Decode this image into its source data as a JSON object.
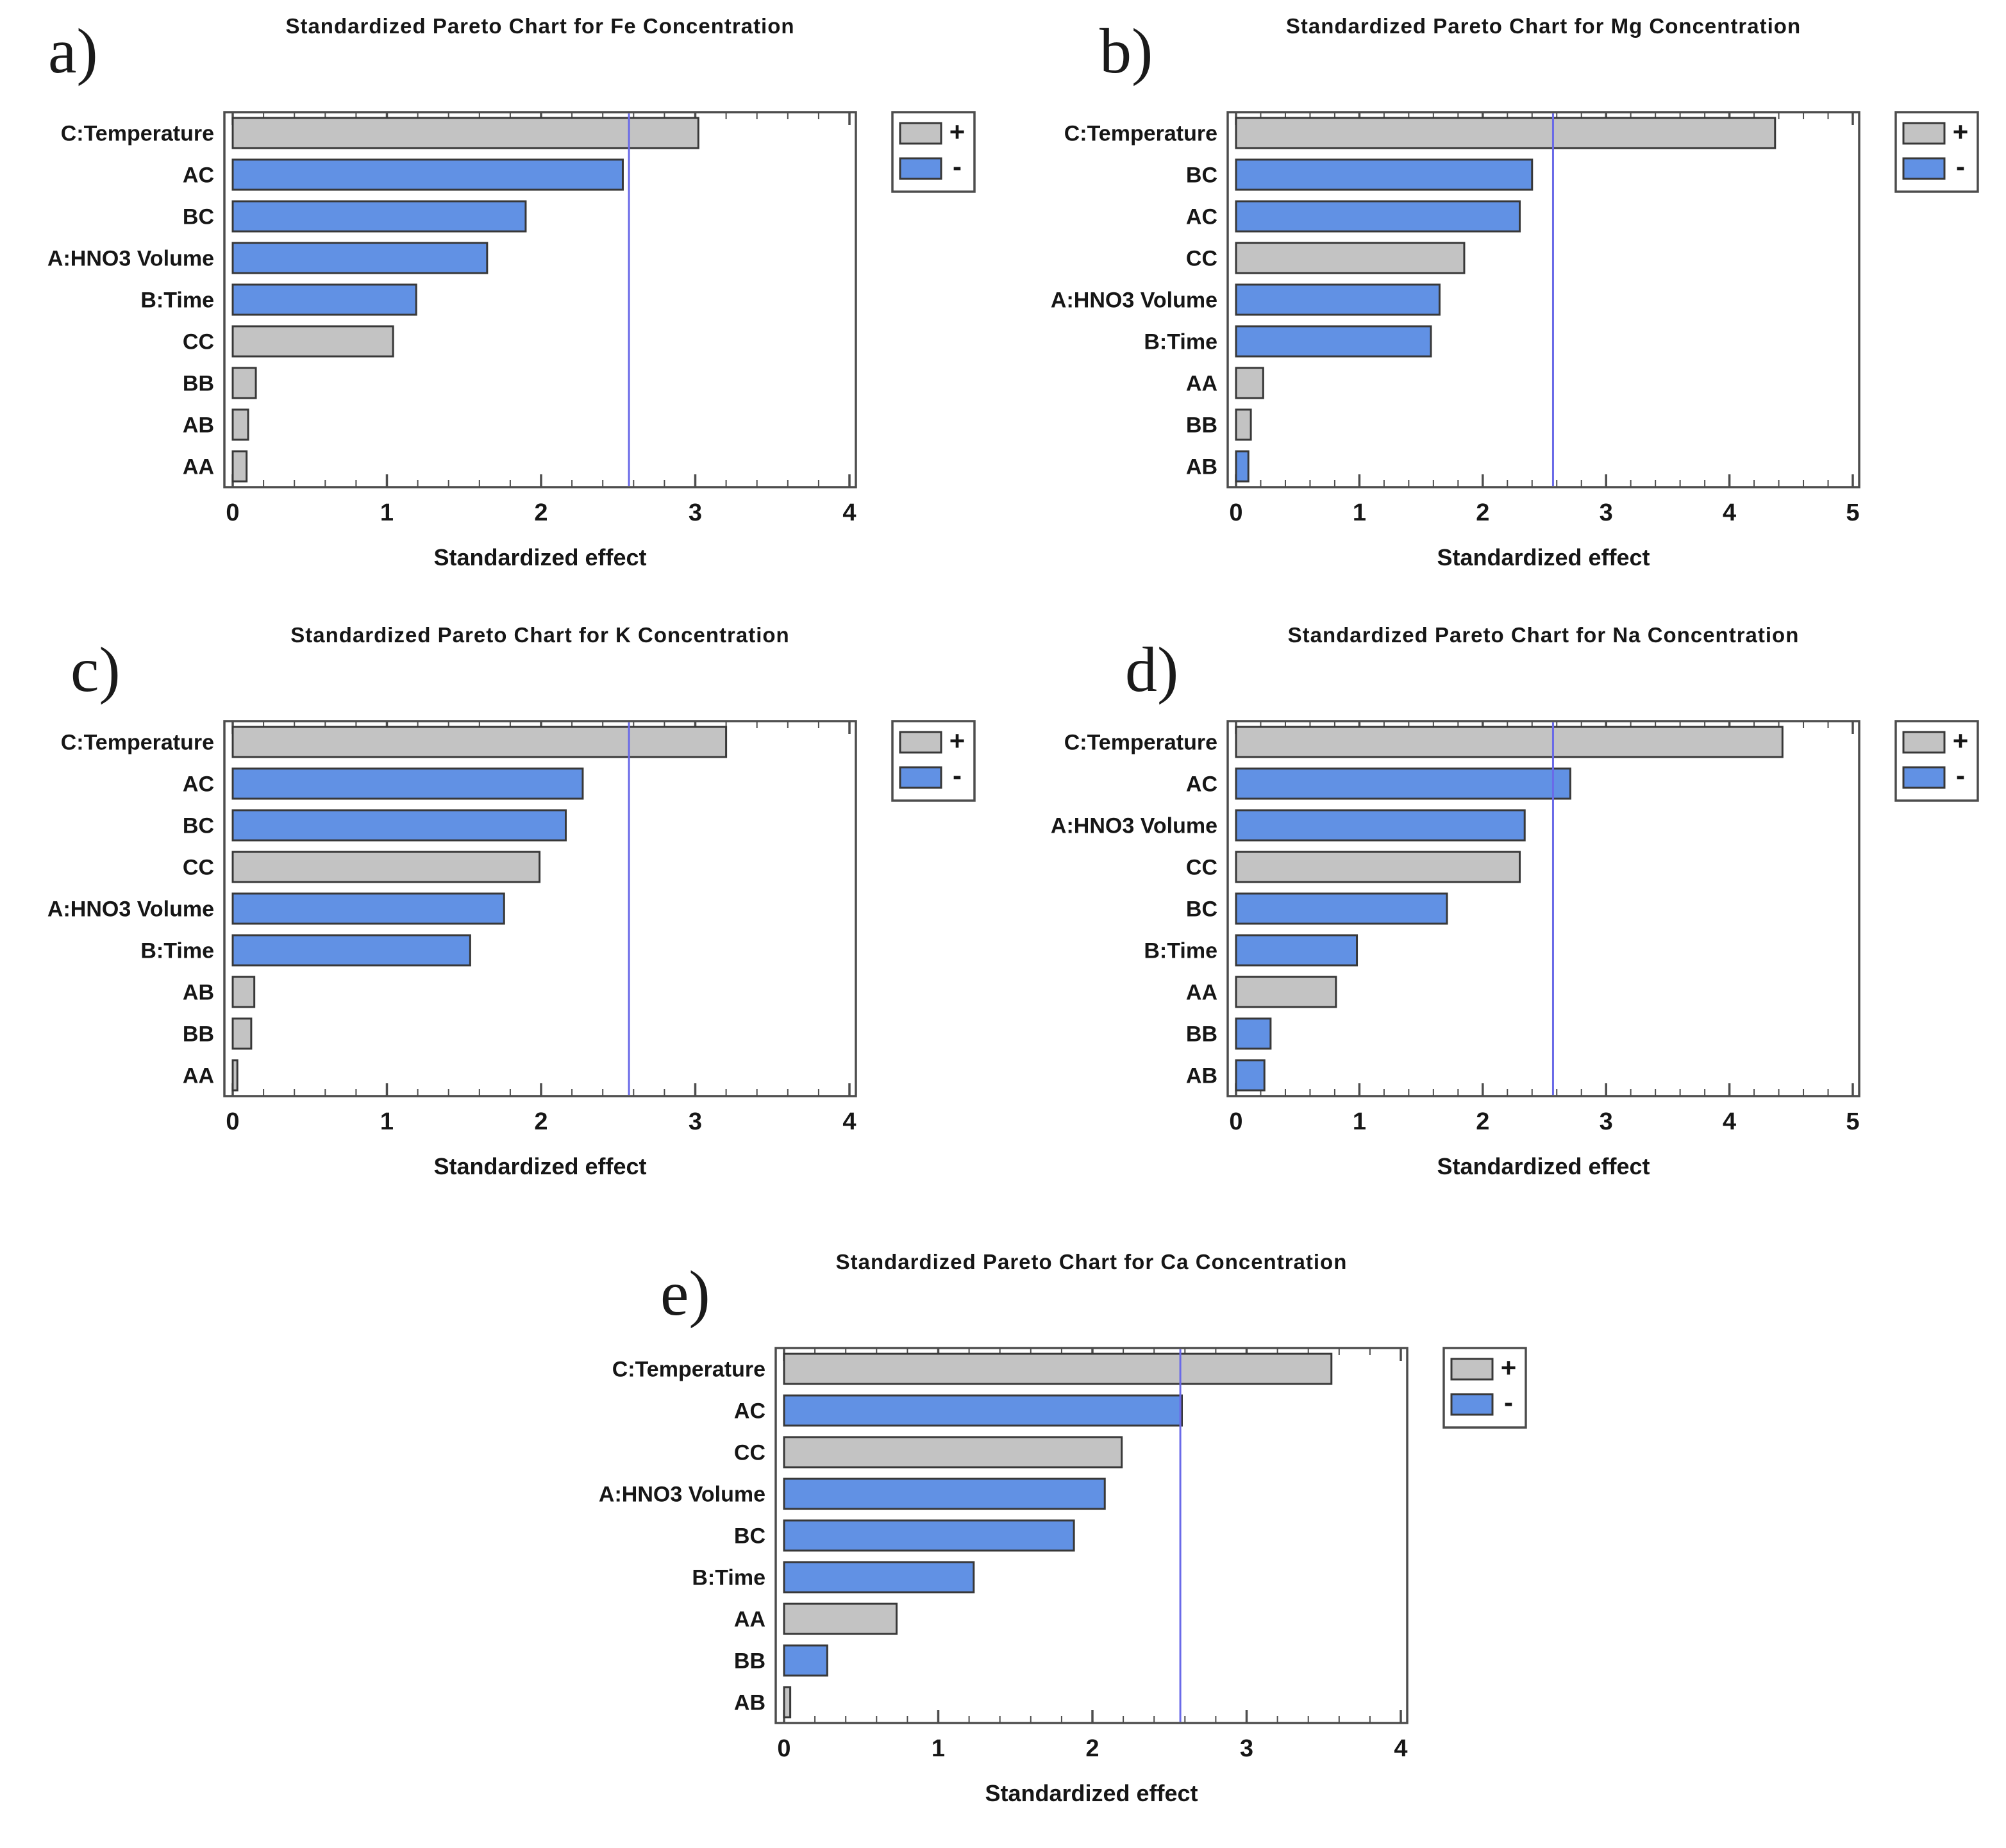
{
  "figure": {
    "xlabel": "Standardized effect",
    "legend": {
      "positive_label": "+",
      "negative_label": "-"
    },
    "colors": {
      "positive_bar": "#c3c3c3",
      "negative_bar": "#6191e4",
      "bar_border": "#383838",
      "box_border": "#4d4d4d",
      "reference_line": "#6a6ae8",
      "text": "#161616"
    }
  },
  "chart_data": [
    {
      "type": "bar",
      "panel": "a)",
      "title": "Standardized Pareto Chart for Fe Concentration",
      "orientation": "horizontal",
      "xlabel": "Standardized effect",
      "xlim": [
        0,
        4
      ],
      "x_major_tick": 1,
      "x_minor_tick": 0.2,
      "reference_line": 2.57,
      "legend": [
        "+",
        "-"
      ],
      "categories": [
        "C:Temperature",
        "AC",
        "BC",
        "A:HNO3 Volume",
        "B:Time",
        "CC",
        "BB",
        "AB",
        "AA"
      ],
      "values": [
        3.02,
        2.53,
        1.9,
        1.65,
        1.19,
        1.04,
        0.15,
        0.1,
        0.09
      ],
      "signs": [
        "+",
        "-",
        "-",
        "-",
        "-",
        "+",
        "+",
        "+",
        "+"
      ]
    },
    {
      "type": "bar",
      "panel": "b)",
      "title": "Standardized Pareto Chart for Mg Concentration",
      "orientation": "horizontal",
      "xlabel": "Standardized effect",
      "xlim": [
        0,
        5
      ],
      "x_major_tick": 1,
      "x_minor_tick": 0.2,
      "reference_line": 2.57,
      "legend": [
        "+",
        "-"
      ],
      "categories": [
        "C:Temperature",
        "BC",
        "AC",
        "CC",
        "A:HNO3 Volume",
        "B:Time",
        "AA",
        "BB",
        "AB"
      ],
      "values": [
        4.37,
        2.4,
        2.3,
        1.85,
        1.65,
        1.58,
        0.22,
        0.12,
        0.1
      ],
      "signs": [
        "+",
        "-",
        "-",
        "+",
        "-",
        "-",
        "+",
        "+",
        "-"
      ]
    },
    {
      "type": "bar",
      "panel": "c)",
      "title": "Standardized Pareto Chart for K Concentration",
      "orientation": "horizontal",
      "xlabel": "Standardized effect",
      "xlim": [
        0,
        4
      ],
      "x_major_tick": 1,
      "x_minor_tick": 0.2,
      "reference_line": 2.57,
      "legend": [
        "+",
        "-"
      ],
      "categories": [
        "C:Temperature",
        "AC",
        "BC",
        "CC",
        "A:HNO3 Volume",
        "B:Time",
        "AB",
        "BB",
        "AA"
      ],
      "values": [
        3.2,
        2.27,
        2.16,
        1.99,
        1.76,
        1.54,
        0.14,
        0.12,
        0.03
      ],
      "signs": [
        "+",
        "-",
        "-",
        "+",
        "-",
        "-",
        "+",
        "+",
        "+"
      ]
    },
    {
      "type": "bar",
      "panel": "d)",
      "title": "Standardized Pareto Chart for Na Concentration",
      "orientation": "horizontal",
      "xlabel": "Standardized effect",
      "xlim": [
        0,
        5
      ],
      "x_major_tick": 1,
      "x_minor_tick": 0.2,
      "reference_line": 2.57,
      "legend": [
        "+",
        "-"
      ],
      "categories": [
        "C:Temperature",
        "AC",
        "A:HNO3 Volume",
        "CC",
        "BC",
        "B:Time",
        "AA",
        "BB",
        "AB"
      ],
      "values": [
        4.43,
        2.71,
        2.34,
        2.3,
        1.71,
        0.98,
        0.81,
        0.28,
        0.23
      ],
      "signs": [
        "+",
        "-",
        "-",
        "+",
        "-",
        "-",
        "+",
        "-",
        "-"
      ]
    },
    {
      "type": "bar",
      "panel": "e)",
      "title": "Standardized Pareto Chart for Ca Concentration",
      "orientation": "horizontal",
      "xlabel": "Standardized effect",
      "xlim": [
        0,
        4
      ],
      "x_major_tick": 1,
      "x_minor_tick": 0.2,
      "reference_line": 2.57,
      "legend": [
        "+",
        "-"
      ],
      "categories": [
        "C:Temperature",
        "AC",
        "CC",
        "A:HNO3 Volume",
        "BC",
        "B:Time",
        "AA",
        "BB",
        "AB"
      ],
      "values": [
        3.55,
        2.58,
        2.19,
        2.08,
        1.88,
        1.23,
        0.73,
        0.28,
        0.04
      ],
      "signs": [
        "+",
        "-",
        "+",
        "-",
        "-",
        "-",
        "+",
        "-",
        "+"
      ]
    }
  ]
}
